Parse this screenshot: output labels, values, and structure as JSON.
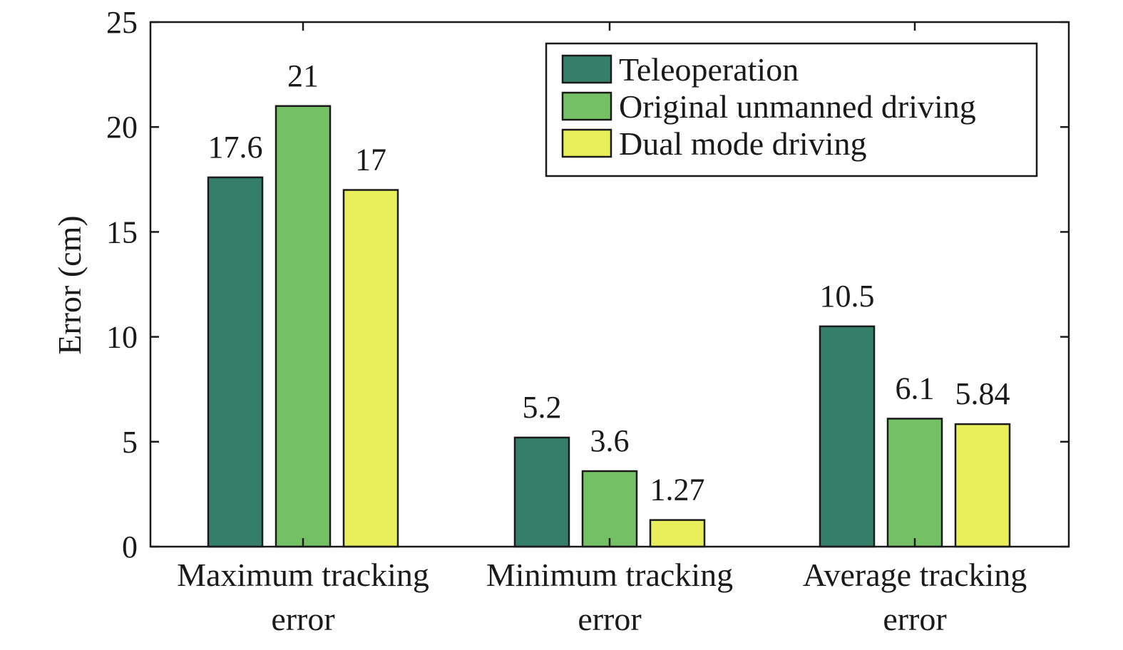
{
  "chart_data": {
    "type": "bar",
    "title": "",
    "xlabel": "",
    "ylabel": "Error (cm)",
    "ylim": [
      0,
      25
    ],
    "yticks": [
      0,
      5,
      10,
      15,
      20,
      25
    ],
    "grid": false,
    "legend_position": "top-right",
    "categories": [
      [
        "Maximum tracking",
        "error"
      ],
      [
        "Minimum tracking",
        "error"
      ],
      [
        "Average tracking",
        "error"
      ]
    ],
    "series": [
      {
        "name": "Teleoperation",
        "color": "#357f68",
        "values": [
          17.6,
          5.2,
          10.5
        ],
        "labels": [
          "17.6",
          "5.2",
          "10.5"
        ]
      },
      {
        "name": "Original unmanned driving",
        "color": "#74c165",
        "values": [
          21,
          3.6,
          6.1
        ],
        "labels": [
          "21",
          "3.6",
          "6.1"
        ]
      },
      {
        "name": "Dual mode driving",
        "color": "#e8ef5a",
        "values": [
          17,
          1.27,
          5.84
        ],
        "labels": [
          "17",
          "1.27",
          "5.84"
        ]
      }
    ]
  }
}
